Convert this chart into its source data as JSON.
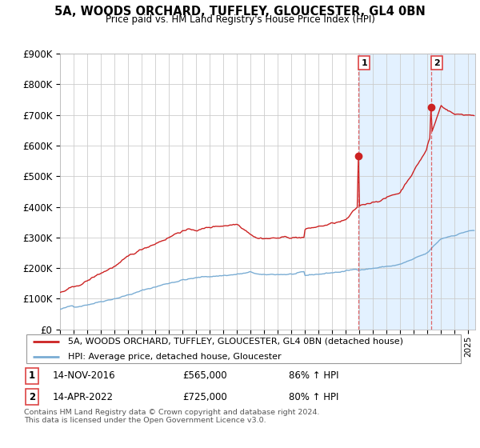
{
  "title": "5A, WOODS ORCHARD, TUFFLEY, GLOUCESTER, GL4 0BN",
  "subtitle": "Price paid vs. HM Land Registry's House Price Index (HPI)",
  "ylim": [
    0,
    900000
  ],
  "yticks": [
    0,
    100000,
    200000,
    300000,
    400000,
    500000,
    600000,
    700000,
    800000,
    900000
  ],
  "ytick_labels": [
    "£0",
    "£100K",
    "£200K",
    "£300K",
    "£400K",
    "£500K",
    "£600K",
    "£700K",
    "£800K",
    "£900K"
  ],
  "hpi_color": "#7aadd4",
  "property_color": "#cc2222",
  "vline_color": "#dd4444",
  "background_color": "#ffffff",
  "grid_color": "#cccccc",
  "shade_color": "#ddeeff",
  "sale1": {
    "date_label": "14-NOV-2016",
    "price": 565000,
    "year_idx": 263,
    "label": "1",
    "pct": "86% ↑ HPI"
  },
  "sale2": {
    "date_label": "14-APR-2022",
    "price": 725000,
    "year_idx": 327,
    "label": "2",
    "pct": "80% ↑ HPI"
  },
  "legend_property": "5A, WOODS ORCHARD, TUFFLEY, GLOUCESTER, GL4 0BN (detached house)",
  "legend_hpi": "HPI: Average price, detached house, Gloucester",
  "footnote": "Contains HM Land Registry data © Crown copyright and database right 2024.\nThis data is licensed under the Open Government Licence v3.0.",
  "x_start_year": 1995.0,
  "x_end_year": 2025.5
}
